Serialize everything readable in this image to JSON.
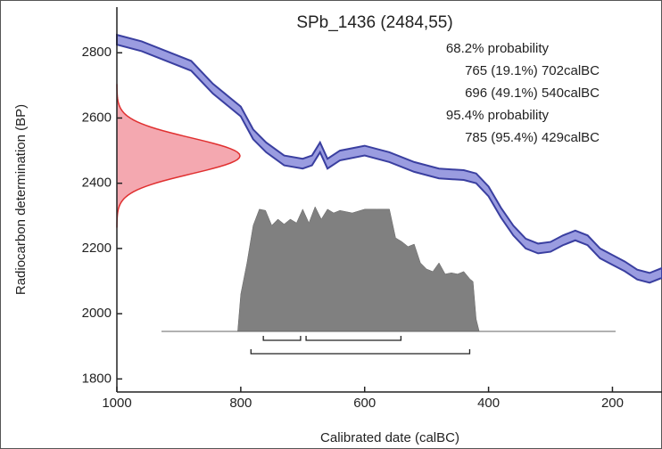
{
  "chart_data": {
    "type": "radiocarbon-calibration",
    "title": "SPb_1436 (2484,55)",
    "x_label": "Calibrated date (calBC)",
    "y_label": "Radiocarbon determination (BP)",
    "xlim": [
      1000,
      120
    ],
    "ylim": [
      1760,
      2940
    ],
    "xticks": [
      1000,
      800,
      600,
      400,
      200
    ],
    "yticks": [
      1800,
      2000,
      2200,
      2400,
      2600,
      2800
    ],
    "measurement": {
      "mean": 2484,
      "error": 55,
      "color": "#e03030",
      "fill": "#f4a8b0"
    },
    "curve": {
      "color": "#3a3fa0",
      "fill": "#9a9ce0",
      "x": [
        1000,
        960,
        920,
        880,
        845,
        800,
        780,
        759,
        730,
        700,
        685,
        672,
        660,
        640,
        600,
        560,
        520,
        480,
        440,
        420,
        400,
        380,
        360,
        340,
        320,
        300,
        280,
        260,
        240,
        220,
        200,
        180,
        160,
        140,
        120
      ],
      "values": [
        2840,
        2820,
        2790,
        2760,
        2690,
        2620,
        2550,
        2510,
        2470,
        2460,
        2470,
        2510,
        2460,
        2485,
        2500,
        2480,
        2450,
        2430,
        2425,
        2415,
        2375,
        2310,
        2255,
        2215,
        2200,
        2205,
        2225,
        2240,
        2225,
        2185,
        2165,
        2145,
        2120,
        2110,
        2125
      ],
      "error": 15
    },
    "posterior": {
      "color": "#808080",
      "x": [
        805,
        800,
        790,
        780,
        770,
        760,
        750,
        740,
        730,
        720,
        710,
        700,
        690,
        680,
        670,
        660,
        650,
        640,
        620,
        600,
        580,
        560,
        550,
        540,
        530,
        520,
        510,
        500,
        490,
        480,
        470,
        460,
        450,
        440,
        430,
        425,
        420,
        415
      ],
      "values": [
        0,
        0.3,
        0.55,
        0.85,
        0.98,
        0.97,
        0.85,
        0.9,
        0.86,
        0.9,
        0.87,
        0.98,
        0.87,
        1.0,
        0.9,
        0.98,
        0.95,
        0.97,
        0.95,
        0.98,
        0.98,
        0.98,
        0.75,
        0.72,
        0.68,
        0.7,
        0.55,
        0.5,
        0.48,
        0.55,
        0.46,
        0.47,
        0.46,
        0.48,
        0.42,
        0.4,
        0.1,
        0
      ]
    },
    "ranges": [
      {
        "label": "68.2% probability",
        "items": [
          {
            "from": 765,
            "to": 702,
            "text": "765 (19.1%) 702calBC"
          },
          {
            "from": 696,
            "to": 540,
            "text": "696 (49.1%) 540calBC"
          }
        ]
      },
      {
        "label": "95.4% probability",
        "items": [
          {
            "from": 785,
            "to": 429,
            "text": "785 (95.4%) 429calBC"
          }
        ]
      }
    ]
  }
}
